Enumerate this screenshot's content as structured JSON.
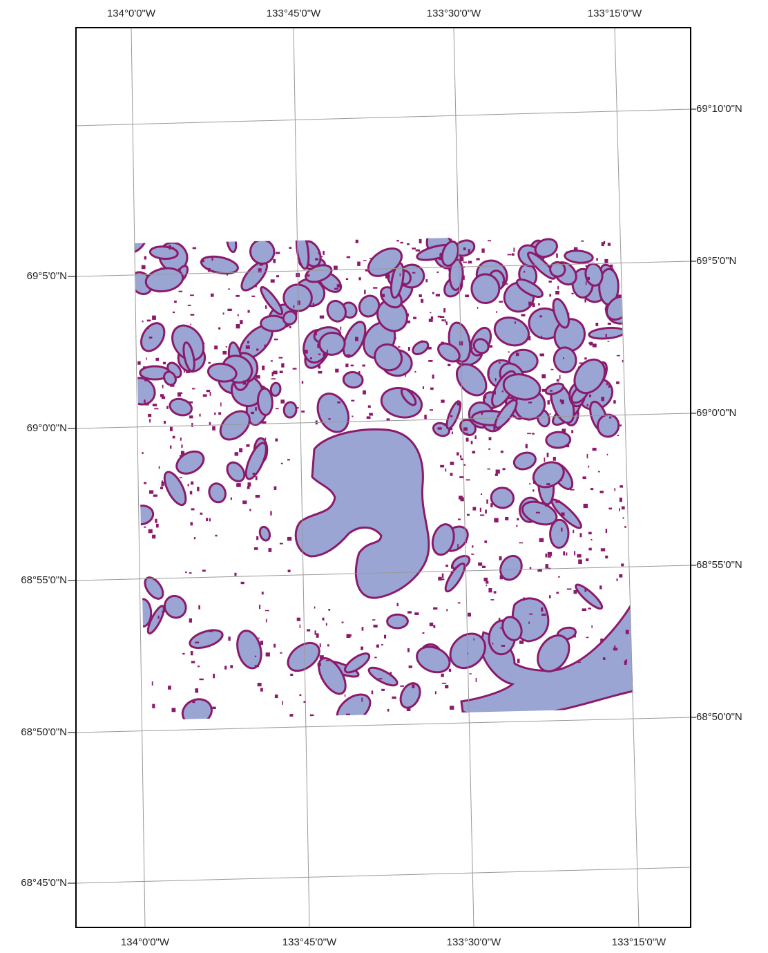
{
  "graticule": {
    "top": [
      "134°0'0\"W",
      "133°45'0\"W",
      "133°30'0\"W",
      "133°15'0\"W"
    ],
    "bottom": [
      "134°0'0\"W",
      "133°45'0\"W",
      "133°30'0\"W",
      "133°15'0\"W"
    ],
    "left": [
      "69°5'0\"N",
      "69°0'0\"N",
      "68°55'0\"N",
      "68°50'0\"N",
      "68°45'0\"N"
    ],
    "right": [
      "69°10'0\"N",
      "69°5'0\"N",
      "69°0'0\"N",
      "68°55'0\"N",
      "68°50'0\"N"
    ]
  }
}
